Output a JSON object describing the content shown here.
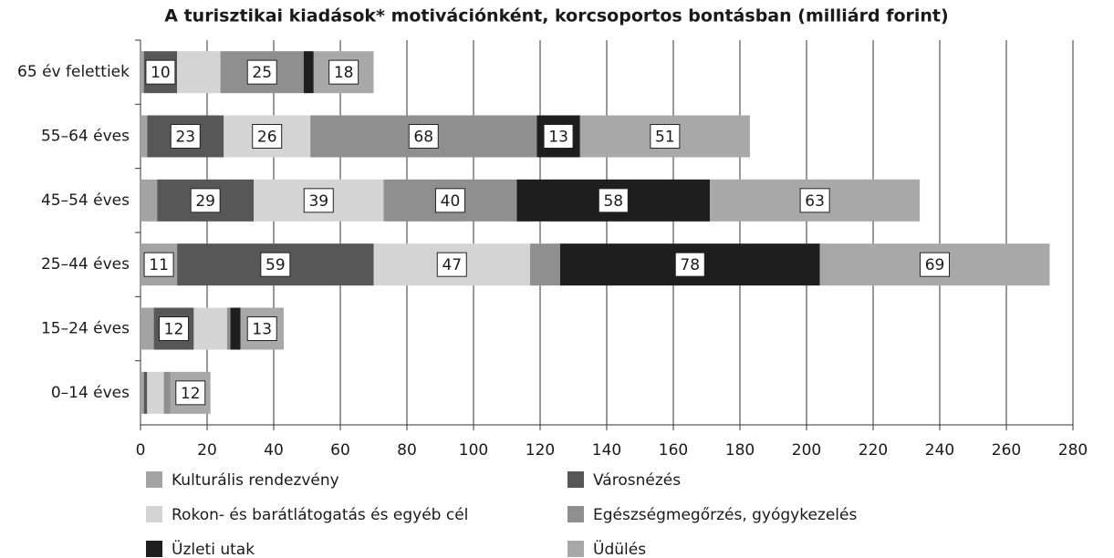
{
  "chart_data": {
    "type": "stacked_barh",
    "title": "A turisztikai kiadások* motivációnként, korcsoportos bontásban (milliárd forint)",
    "categories": [
      "65 év felettiek",
      "55–64 éves",
      "45–54 éves",
      "25–44 éves",
      "15–24 éves",
      "0–14 éves"
    ],
    "series": [
      {
        "name": "Kulturális rendezvény",
        "color": "#a3a3a3",
        "values": [
          1,
          2,
          5,
          11,
          4,
          1
        ],
        "value_labels": [
          null,
          null,
          null,
          11,
          null,
          null
        ]
      },
      {
        "name": "Városnézés",
        "color": "#575757",
        "values": [
          10,
          23,
          29,
          59,
          12,
          1
        ],
        "value_labels": [
          10,
          23,
          29,
          59,
          12,
          null
        ]
      },
      {
        "name": "Rokon- és barátlátogatás és egyéb cél",
        "color": "#d4d4d4",
        "values": [
          13,
          26,
          39,
          47,
          10,
          5
        ],
        "value_labels": [
          null,
          26,
          39,
          47,
          null,
          null
        ]
      },
      {
        "name": "Egészségmegőrzés, gyógykezelés",
        "color": "#8f8f8f",
        "values": [
          25,
          68,
          40,
          9,
          1,
          2
        ],
        "value_labels": [
          25,
          68,
          40,
          null,
          null,
          null
        ]
      },
      {
        "name": "Üzleti utak",
        "color": "#1e1e1e",
        "values": [
          3,
          13,
          58,
          78,
          3,
          0
        ],
        "value_labels": [
          null,
          13,
          58,
          78,
          null,
          null
        ]
      },
      {
        "name": "Üdülés",
        "color": "#a8a8a8",
        "values": [
          18,
          51,
          63,
          69,
          13,
          12
        ],
        "value_labels": [
          18,
          51,
          63,
          69,
          13,
          12
        ]
      }
    ],
    "xlim": [
      0,
      280
    ],
    "xticks": [
      0,
      20,
      40,
      60,
      80,
      100,
      120,
      140,
      160,
      180,
      200,
      220,
      240,
      260,
      280
    ],
    "grid": true
  }
}
